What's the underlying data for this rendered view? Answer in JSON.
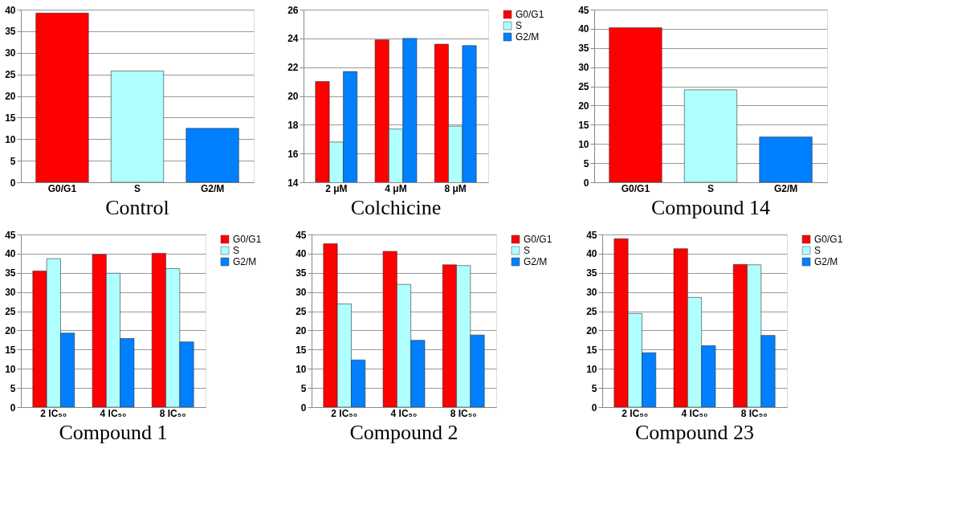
{
  "chart_data": [
    {
      "type": "bar",
      "title": "Control",
      "categories": [
        "G0/G1",
        "S",
        "G2/M"
      ],
      "values": [
        39.2,
        25.8,
        12.5
      ],
      "colors": [
        "#ff0000",
        "#b0ffff",
        "#0080ff"
      ],
      "ylim": [
        0,
        40
      ],
      "yticks": [
        0,
        5,
        10,
        15,
        20,
        25,
        30,
        35,
        40
      ],
      "grid": "y",
      "legend": false
    },
    {
      "type": "bar",
      "title": "Colchicine",
      "categories": [
        "2 μM",
        "4 μM",
        "8 μM"
      ],
      "series": [
        {
          "name": "G0/G1",
          "color": "#ff0000",
          "values": [
            21.0,
            23.9,
            23.6
          ]
        },
        {
          "name": "S",
          "color": "#b0ffff",
          "values": [
            16.8,
            17.7,
            17.9
          ]
        },
        {
          "name": "G2/M",
          "color": "#0080ff",
          "values": [
            21.7,
            24.0,
            23.5
          ]
        }
      ],
      "ylim": [
        14,
        26
      ],
      "yticks": [
        14,
        16,
        18,
        20,
        22,
        24,
        26
      ],
      "grid": "y",
      "legend": "right"
    },
    {
      "type": "bar",
      "title": "Compound 14",
      "categories": [
        "G0/G1",
        "S",
        "G2/M"
      ],
      "values": [
        40.3,
        24.1,
        11.8
      ],
      "colors": [
        "#ff0000",
        "#b0ffff",
        "#0080ff"
      ],
      "ylim": [
        0,
        45
      ],
      "yticks": [
        0,
        5,
        10,
        15,
        20,
        25,
        30,
        35,
        40,
        45
      ],
      "grid": "y",
      "legend": false
    },
    {
      "type": "bar",
      "title": "Compound 1",
      "categories": [
        "2 IC₅₀",
        "4 IC₅₀",
        "8 IC₅₀"
      ],
      "series": [
        {
          "name": "G0/G1",
          "color": "#ff0000",
          "values": [
            35.5,
            39.8,
            40.1
          ]
        },
        {
          "name": "S",
          "color": "#b0ffff",
          "values": [
            38.7,
            34.9,
            36.1
          ]
        },
        {
          "name": "G2/M",
          "color": "#0080ff",
          "values": [
            19.3,
            17.9,
            17.0
          ]
        }
      ],
      "ylim": [
        0,
        45
      ],
      "yticks": [
        0,
        5,
        10,
        15,
        20,
        25,
        30,
        35,
        40,
        45
      ],
      "grid": "y",
      "legend": "right"
    },
    {
      "type": "bar",
      "title": "Compound 2",
      "categories": [
        "2 IC₅₀",
        "4 IC₅₀",
        "8 IC₅₀"
      ],
      "series": [
        {
          "name": "G0/G1",
          "color": "#ff0000",
          "values": [
            42.6,
            40.6,
            37.1
          ]
        },
        {
          "name": "S",
          "color": "#b0ffff",
          "values": [
            26.9,
            32.0,
            36.9
          ]
        },
        {
          "name": "G2/M",
          "color": "#0080ff",
          "values": [
            12.3,
            17.4,
            18.8
          ]
        }
      ],
      "ylim": [
        0,
        45
      ],
      "yticks": [
        0,
        5,
        10,
        15,
        20,
        25,
        30,
        35,
        40,
        45
      ],
      "grid": "y",
      "legend": "right"
    },
    {
      "type": "bar",
      "title": "Compound 23",
      "categories": [
        "2 IC₅₀",
        "4 IC₅₀",
        "8 IC₅₀"
      ],
      "series": [
        {
          "name": "G0/G1",
          "color": "#ff0000",
          "values": [
            43.9,
            41.3,
            37.2
          ]
        },
        {
          "name": "S",
          "color": "#b0ffff",
          "values": [
            24.4,
            28.6,
            37.1
          ]
        },
        {
          "name": "G2/M",
          "color": "#0080ff",
          "values": [
            14.2,
            16.0,
            18.7
          ]
        }
      ],
      "ylim": [
        0,
        45
      ],
      "yticks": [
        0,
        5,
        10,
        15,
        20,
        25,
        30,
        35,
        40,
        45
      ],
      "grid": "y",
      "legend": "right"
    }
  ]
}
